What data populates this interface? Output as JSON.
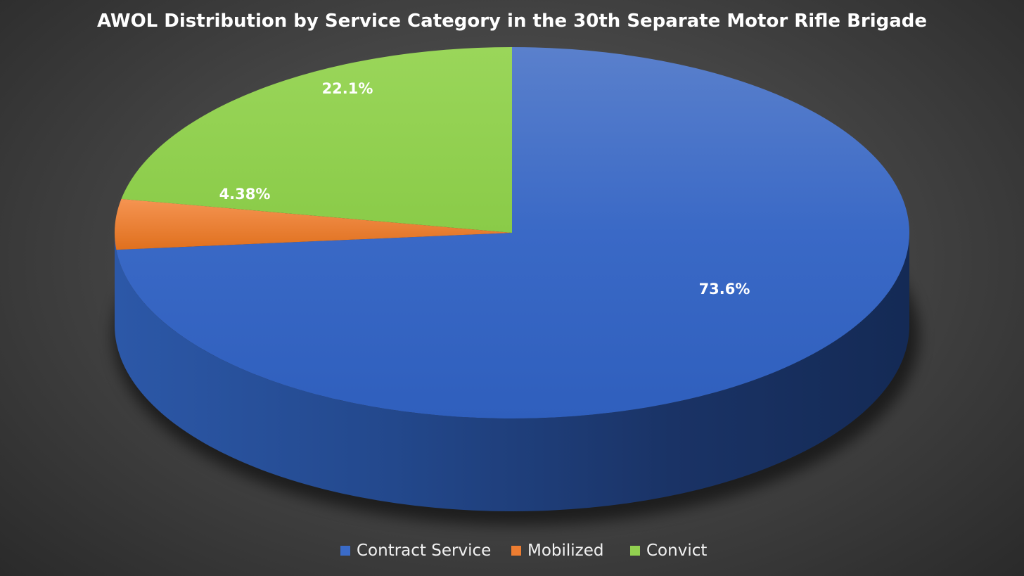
{
  "chart_data": {
    "type": "pie",
    "title": "AWOL Distribution by Service Category in the 30th Separate Motor Rifle Brigade",
    "slices": [
      {
        "label": "Contract Service",
        "value": 73.6,
        "display": "73.6%",
        "color": "#3a6bc8"
      },
      {
        "label": "Mobilized",
        "value": 4.38,
        "display": "4.38%",
        "color": "#ed7d31"
      },
      {
        "label": "Convict",
        "value": 22.1,
        "display": "22.1%",
        "color": "#92d050"
      }
    ],
    "legend_placement": "bottom",
    "style": "3d"
  }
}
